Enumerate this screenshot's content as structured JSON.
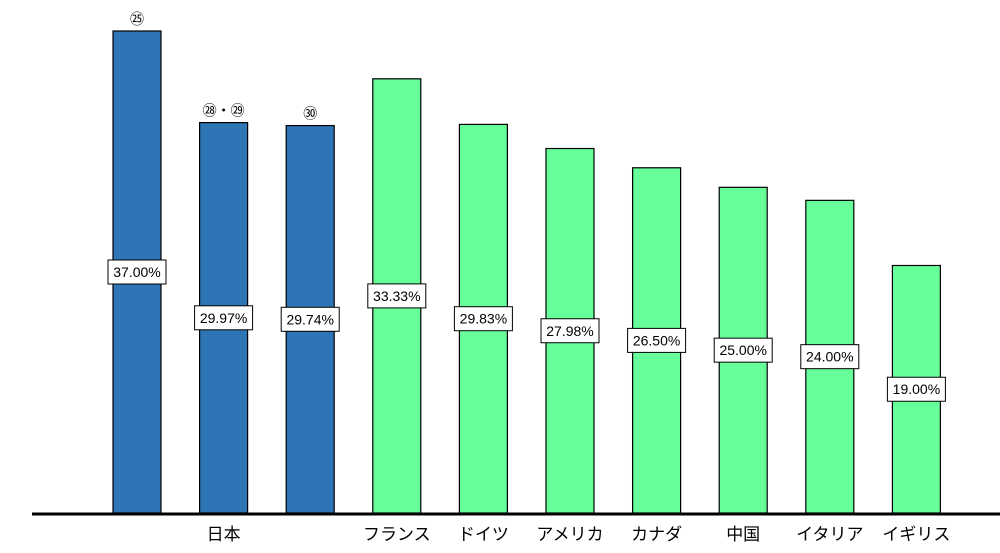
{
  "chart_data": {
    "type": "bar",
    "title": "",
    "xlabel": "",
    "ylabel": "",
    "ylim": [
      0,
      37.0
    ],
    "grid": false,
    "legend": "none",
    "colors": {
      "japan": "#2E75B6",
      "other": "#66FF99",
      "axis": "#000000"
    },
    "categories": [
      "",
      "日本",
      "",
      "フランス",
      "ドイツ",
      "アメリカ",
      "カナダ",
      "中国",
      "イタリア",
      "イギリス"
    ],
    "bars": [
      {
        "top_label": "㉕",
        "value": 37.0,
        "label": "37.00%",
        "group": "japan"
      },
      {
        "top_label": "㉘・㉙",
        "value": 29.97,
        "label": "29.97%",
        "group": "japan"
      },
      {
        "top_label": "㉚",
        "value": 29.74,
        "label": "29.74%",
        "group": "japan"
      },
      {
        "top_label": "",
        "value": 33.33,
        "label": "33.33%",
        "group": "other"
      },
      {
        "top_label": "",
        "value": 29.83,
        "label": "29.83%",
        "group": "other"
      },
      {
        "top_label": "",
        "value": 27.98,
        "label": "27.98%",
        "group": "other"
      },
      {
        "top_label": "",
        "value": 26.5,
        "label": "26.50%",
        "group": "other"
      },
      {
        "top_label": "",
        "value": 25.0,
        "label": "25.00%",
        "group": "other"
      },
      {
        "top_label": "",
        "value": 24.0,
        "label": "24.00%",
        "group": "other"
      },
      {
        "top_label": "",
        "value": 19.0,
        "label": "19.00%",
        "group": "other"
      }
    ]
  }
}
